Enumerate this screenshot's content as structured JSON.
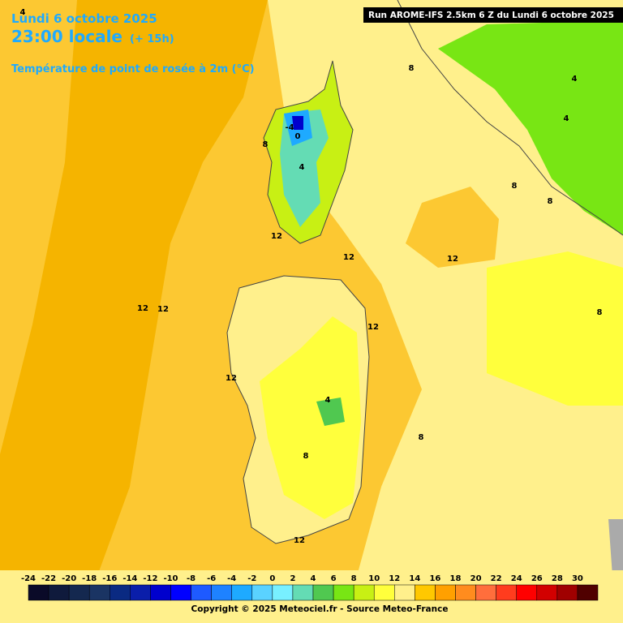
{
  "header": {
    "date": "Lundi 6 octobre 2025",
    "time": "23:00 locale",
    "lead": "(+ 15h)",
    "parameter": "Température de point de rosée à 2m (°C)",
    "run": "Run AROME-IFS 2.5km 6 Z du Lundi 6 octobre 2025"
  },
  "map": {
    "labels": [
      4,
      8,
      4,
      4,
      -4,
      0,
      8,
      4,
      8,
      8,
      12,
      12,
      12,
      12,
      12,
      12,
      8,
      12,
      4,
      8,
      8,
      12
    ]
  },
  "legend": {
    "ticks": [
      -24,
      -22,
      -20,
      -18,
      -16,
      -14,
      -12,
      -10,
      -8,
      -6,
      -4,
      -2,
      0,
      2,
      4,
      6,
      8,
      10,
      12,
      14,
      16,
      18,
      20,
      22,
      24,
      26,
      28,
      30
    ],
    "colors": [
      "#0a0a28",
      "#0f1a3c",
      "#14284f",
      "#1a3463",
      "#0a2a82",
      "#0a1eaa",
      "#0000cd",
      "#0000ff",
      "#1e5aff",
      "#1e82ff",
      "#1eaaff",
      "#5ad2ff",
      "#78f0ff",
      "#64dcb4",
      "#50c850",
      "#78e614",
      "#c8f014",
      "#ffff3c",
      "#fff08c",
      "#ffc800",
      "#ffa000",
      "#ff8c1e",
      "#ff6e3c",
      "#ff3c1e",
      "#ff0000",
      "#d20000",
      "#a00000",
      "#500000"
    ]
  },
  "footer": {
    "copyright": "Copyright © 2025 Meteociel.fr - Source Meteo-France"
  }
}
